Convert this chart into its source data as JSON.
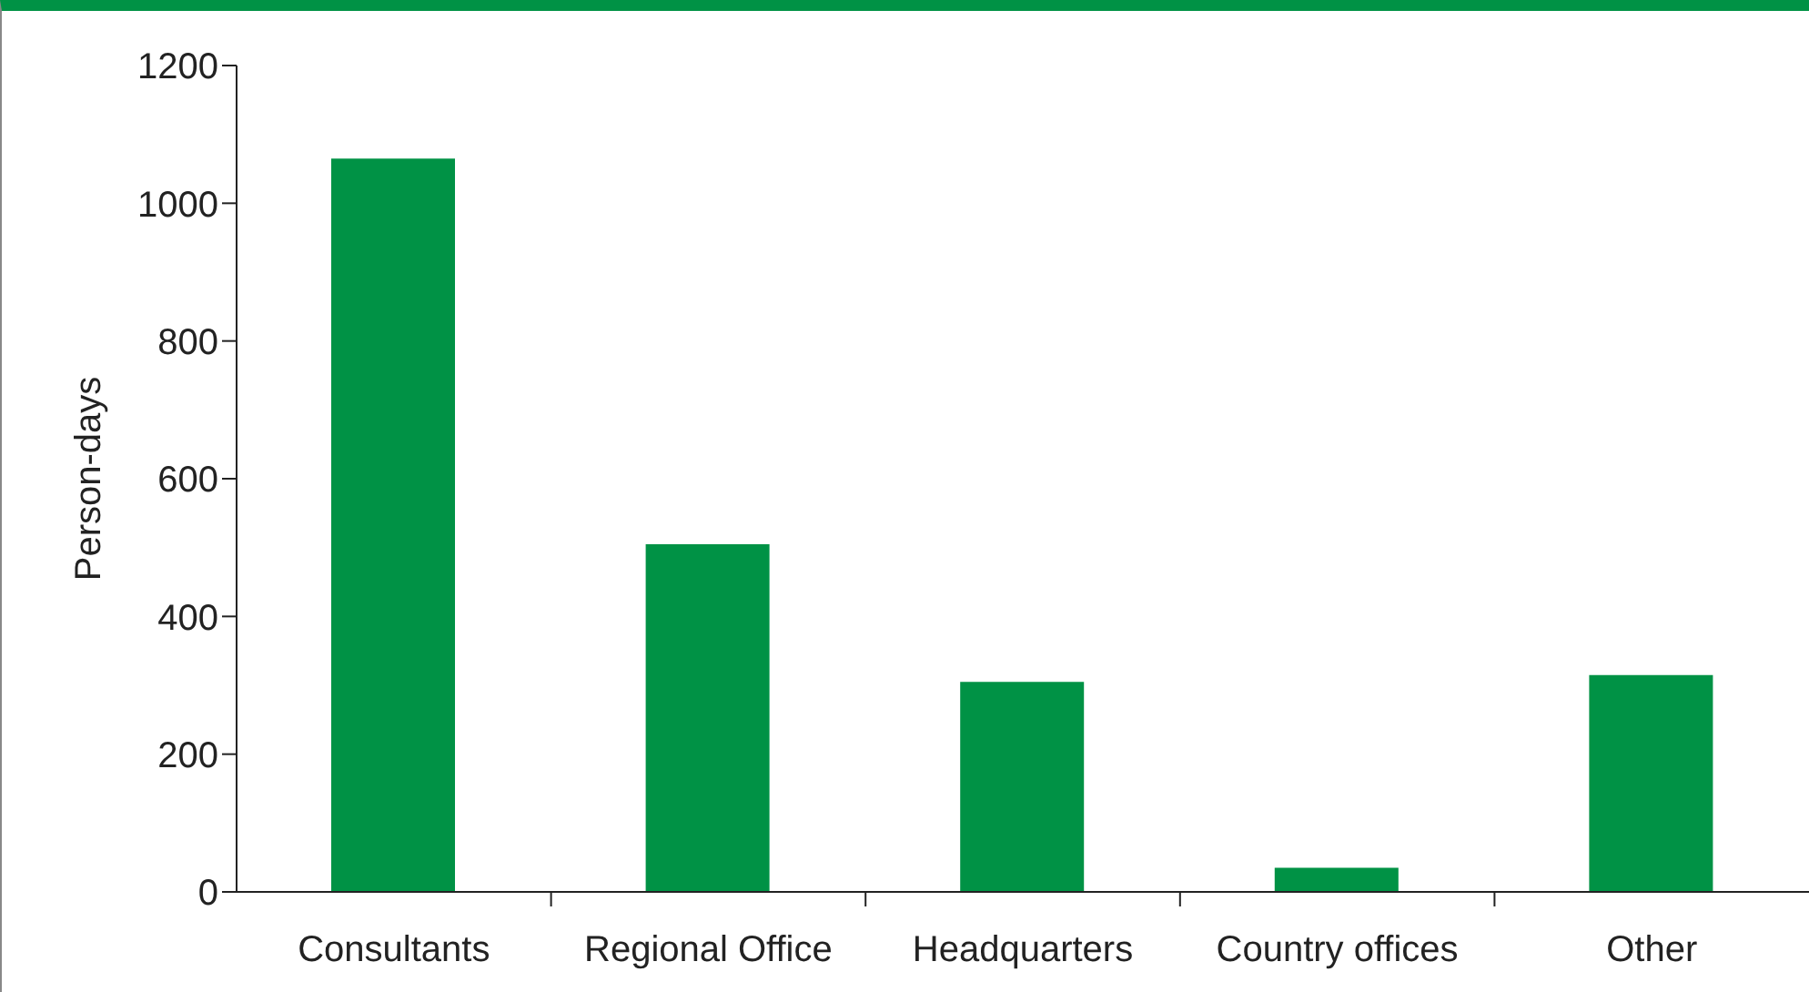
{
  "chart_data": {
    "type": "bar",
    "ylabel": "Person-days",
    "categories": [
      "Consultants",
      "Regional Office",
      "Headquarters",
      "Country offices",
      "Other"
    ],
    "values": [
      1065,
      505,
      305,
      35,
      315
    ],
    "color": "#009245",
    "ylim": [
      0,
      1200
    ],
    "yticks": [
      0,
      200,
      400,
      600,
      800,
      1000,
      1200
    ],
    "grid": false,
    "legend": false
  }
}
